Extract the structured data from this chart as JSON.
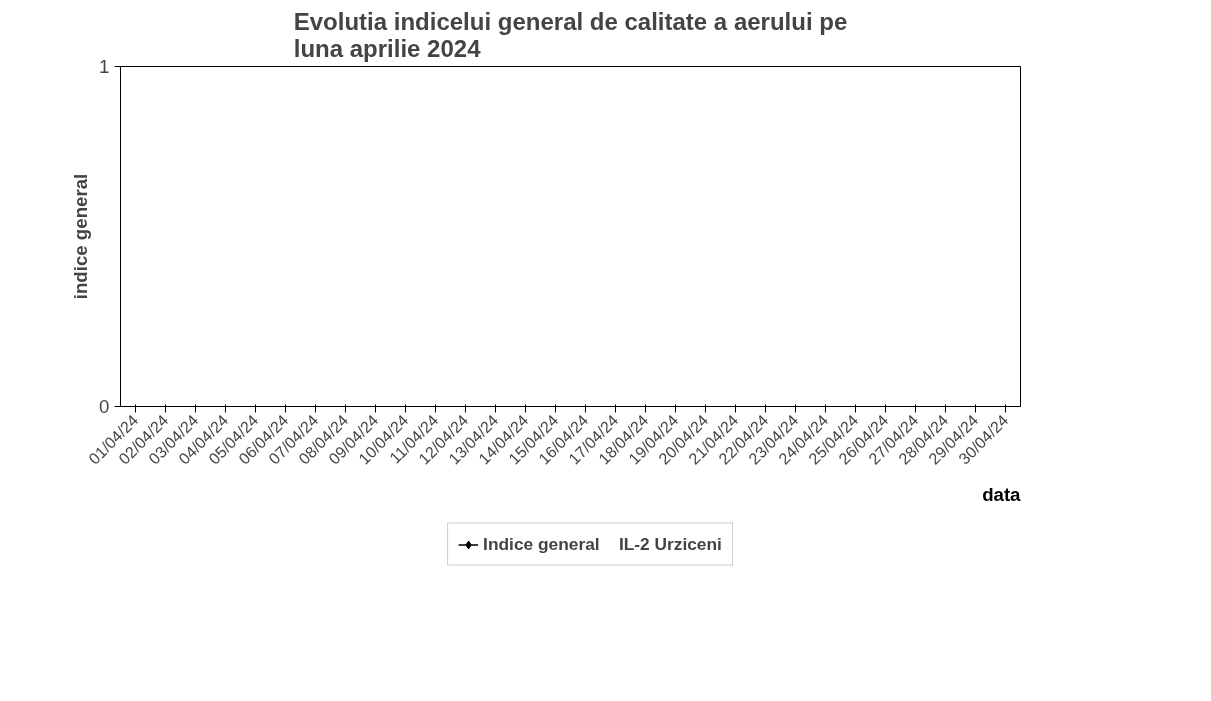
{
  "chart_data": {
    "type": "line",
    "title": "Evolutia indicelui general de calitate a aerului pe\nluna aprilie 2024",
    "xlabel": "data",
    "ylabel": "indice general",
    "categories": [
      "01/04/24",
      "02/04/24",
      "03/04/24",
      "04/04/24",
      "05/04/24",
      "06/04/24",
      "07/04/24",
      "08/04/24",
      "09/04/24",
      "10/04/24",
      "11/04/24",
      "12/04/24",
      "13/04/24",
      "14/04/24",
      "15/04/24",
      "16/04/24",
      "17/04/24",
      "18/04/24",
      "19/04/24",
      "20/04/24",
      "21/04/24",
      "22/04/24",
      "23/04/24",
      "24/04/24",
      "25/04/24",
      "26/04/24",
      "27/04/24",
      "28/04/24",
      "29/04/24",
      "30/04/24"
    ],
    "series": [
      {
        "name": "Indice general    IL-2 Urziceni",
        "color": "#000000",
        "values": [
          null,
          null,
          null,
          null,
          null,
          null,
          null,
          null,
          null,
          null,
          null,
          null,
          null,
          null,
          null,
          null,
          null,
          null,
          null,
          null,
          null,
          null,
          null,
          null,
          null,
          null,
          null,
          null,
          null,
          null
        ]
      }
    ],
    "ylim": [
      0,
      1
    ],
    "yticks": [
      0,
      1
    ],
    "grid": false,
    "legend": "bottom",
    "marker": "diamond",
    "line_style": "solid"
  }
}
